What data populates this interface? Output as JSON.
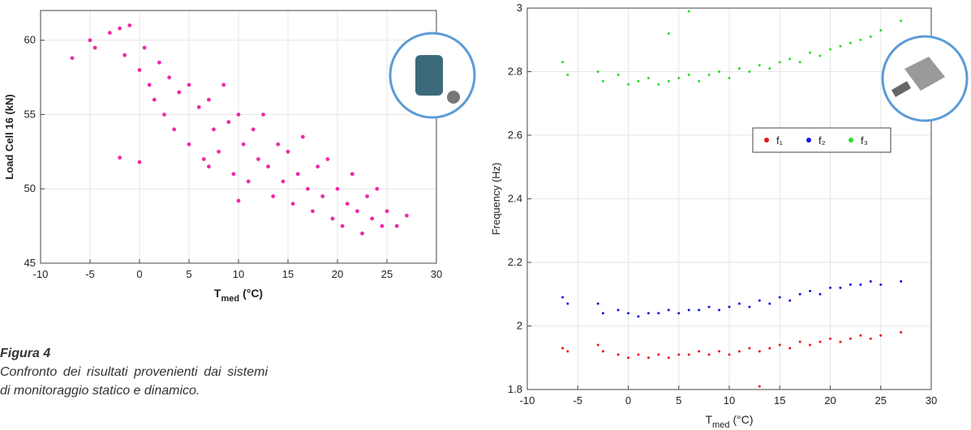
{
  "chart_data": [
    {
      "type": "scatter",
      "color": "#ee2aa8",
      "y_label": "Load Cell 16 (kN)",
      "x_label": {
        "main": "T",
        "sub": "med",
        "unit": "(°C)"
      },
      "xlim": [
        -10,
        30
      ],
      "xticks": [
        -10,
        -5,
        0,
        5,
        10,
        15,
        20,
        25,
        30
      ],
      "ylim": [
        45,
        62
      ],
      "yticks": [
        45,
        50,
        55,
        60
      ],
      "grid": true,
      "x": [
        -6.8,
        -5,
        -4.5,
        -3,
        -2,
        -1.5,
        -1,
        0,
        0,
        -2,
        0.5,
        1,
        1.5,
        2,
        2.5,
        3,
        3.5,
        4,
        5,
        5,
        6,
        6.5,
        7,
        7.5,
        8,
        8.5,
        9,
        9.5,
        10,
        10.5,
        11,
        11.5,
        12,
        12.5,
        13,
        13.5,
        14,
        14.5,
        15,
        15.5,
        16,
        16.5,
        17,
        17.5,
        18,
        18.5,
        19,
        19.5,
        20,
        20.5,
        21,
        21.5,
        22,
        22.5,
        23,
        23.5,
        24,
        24.5,
        25,
        26,
        27,
        10,
        7
      ],
      "values": [
        58.8,
        60,
        59.5,
        60.5,
        60.8,
        59,
        61,
        58,
        51.8,
        52.1,
        59.5,
        57,
        56,
        58.5,
        55,
        57.5,
        54,
        56.5,
        57,
        53,
        55.5,
        52,
        56,
        54,
        52.5,
        57,
        54.5,
        51,
        55,
        53,
        50.5,
        54,
        52,
        55,
        51.5,
        49.5,
        53,
        50.5,
        52.5,
        49,
        51,
        53.5,
        50,
        48.5,
        51.5,
        49.5,
        52,
        48,
        50,
        47.5,
        49,
        51,
        48.5,
        47,
        49.5,
        48,
        50,
        47.5,
        48.5,
        47.5,
        48.2,
        49.2,
        51.5
      ]
    },
    {
      "type": "scatter",
      "y_label": "Frequency (Hz)",
      "x_label": {
        "main": "T",
        "sub": "med",
        "unit": "(°C)"
      },
      "xlim": [
        -10,
        30
      ],
      "xticks": [
        -10,
        -5,
        0,
        5,
        10,
        15,
        20,
        25,
        30
      ],
      "ylim": [
        1.8,
        3
      ],
      "yticks": [
        1.8,
        2,
        2.2,
        2.4,
        2.6,
        2.8,
        3
      ],
      "grid": true,
      "series": [
        {
          "name": "f₁",
          "color": "#e8141b",
          "x": [
            -6.5,
            -6,
            -3,
            -2.5,
            -1,
            0,
            1,
            2,
            3,
            4,
            5,
            6,
            7,
            8,
            9,
            10,
            11,
            12,
            13,
            14,
            15,
            16,
            17,
            18,
            19,
            20,
            21,
            22,
            23,
            24,
            25,
            27,
            13
          ],
          "values": [
            1.93,
            1.92,
            1.94,
            1.92,
            1.91,
            1.9,
            1.91,
            1.9,
            1.91,
            1.9,
            1.91,
            1.91,
            1.92,
            1.91,
            1.92,
            1.91,
            1.92,
            1.93,
            1.92,
            1.93,
            1.94,
            1.93,
            1.95,
            1.94,
            1.95,
            1.96,
            1.95,
            1.96,
            1.97,
            1.96,
            1.97,
            1.98,
            1.81
          ]
        },
        {
          "name": "f₂",
          "color": "#1515e0",
          "x": [
            -6.5,
            -6,
            -3,
            -2.5,
            -1,
            0,
            1,
            2,
            3,
            4,
            5,
            6,
            7,
            8,
            9,
            10,
            11,
            12,
            13,
            14,
            15,
            16,
            17,
            18,
            19,
            20,
            21,
            22,
            23,
            24,
            25,
            27
          ],
          "values": [
            2.09,
            2.07,
            2.07,
            2.04,
            2.05,
            2.04,
            2.03,
            2.04,
            2.04,
            2.05,
            2.04,
            2.05,
            2.05,
            2.06,
            2.05,
            2.06,
            2.07,
            2.06,
            2.08,
            2.07,
            2.09,
            2.08,
            2.1,
            2.11,
            2.1,
            2.12,
            2.12,
            2.13,
            2.13,
            2.14,
            2.13,
            2.14
          ]
        },
        {
          "name": "f₃",
          "color": "#22e01e",
          "x": [
            -6.5,
            -6,
            -3,
            -2.5,
            -1,
            0,
            1,
            2,
            3,
            4,
            5,
            6,
            7,
            8,
            9,
            10,
            11,
            12,
            13,
            14,
            15,
            16,
            17,
            18,
            19,
            20,
            21,
            22,
            23,
            24,
            25,
            27,
            6,
            4
          ],
          "values": [
            2.83,
            2.79,
            2.8,
            2.77,
            2.79,
            2.76,
            2.77,
            2.78,
            2.76,
            2.77,
            2.78,
            2.79,
            2.77,
            2.79,
            2.8,
            2.78,
            2.81,
            2.8,
            2.82,
            2.81,
            2.83,
            2.84,
            2.83,
            2.86,
            2.85,
            2.87,
            2.88,
            2.89,
            2.9,
            2.91,
            2.93,
            2.96,
            2.99,
            2.92
          ]
        }
      ]
    }
  ],
  "caption": {
    "title": "Figura 4",
    "text": "Confronto dei risultati provenienti dai sistemi di monitoraggio statico e dinamico."
  }
}
